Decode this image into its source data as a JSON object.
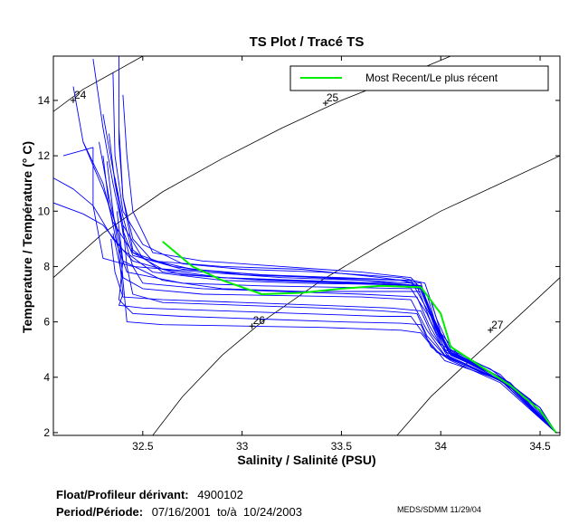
{
  "chart_data": {
    "type": "line",
    "title": "TS Plot / Tracé TS",
    "xlabel": "Salinity / Salinité (PSU)",
    "ylabel": "Temperature / Température (° C)",
    "xlim": [
      32.05,
      34.6
    ],
    "ylim": [
      1.9,
      15.6
    ],
    "xticks": [
      32.5,
      33,
      33.5,
      34,
      34.5
    ],
    "yticks": [
      2,
      4,
      6,
      8,
      10,
      12,
      14
    ],
    "xtick_labels": [
      "32.5",
      "33",
      "33.5",
      "34",
      "34.5"
    ],
    "ytick_labels": [
      "2",
      "4",
      "6",
      "8",
      "10",
      "12",
      "14"
    ],
    "legend": {
      "position": "top-right",
      "entries": [
        {
          "label": "Most Recent/Le plus récent",
          "color": "#00ee00"
        }
      ]
    },
    "density_contours": [
      {
        "label": "24",
        "marker": [
          32.15,
          14.0
        ],
        "points": [
          [
            32.05,
            13.6
          ],
          [
            32.2,
            14.4
          ],
          [
            32.35,
            15.0
          ],
          [
            32.5,
            15.6
          ]
        ]
      },
      {
        "label": "25",
        "marker": [
          33.42,
          13.9
        ],
        "points": [
          [
            32.05,
            7.6
          ],
          [
            32.3,
            9.2
          ],
          [
            32.6,
            10.7
          ],
          [
            32.9,
            11.9
          ],
          [
            33.2,
            13.0
          ],
          [
            33.5,
            14.0
          ],
          [
            33.8,
            14.85
          ],
          [
            34.05,
            15.6
          ]
        ]
      },
      {
        "label": "26",
        "marker": [
          33.05,
          5.85
        ],
        "points": [
          [
            32.55,
            1.9
          ],
          [
            32.7,
            3.3
          ],
          [
            32.9,
            4.8
          ],
          [
            33.1,
            6.0
          ],
          [
            33.4,
            7.5
          ],
          [
            33.7,
            8.8
          ],
          [
            34.0,
            10.0
          ],
          [
            34.3,
            11.0
          ],
          [
            34.6,
            12.0
          ]
        ]
      },
      {
        "label": "27",
        "marker": [
          34.25,
          5.7
        ],
        "points": [
          [
            33.78,
            1.9
          ],
          [
            33.95,
            3.3
          ],
          [
            34.1,
            4.3
          ],
          [
            34.3,
            5.6
          ],
          [
            34.45,
            6.6
          ],
          [
            34.6,
            7.6
          ]
        ]
      }
    ],
    "historical_color": "#0000ff",
    "most_recent_color": "#00ee00",
    "most_recent": [
      [
        32.6,
        8.9
      ],
      [
        32.75,
        8.0
      ],
      [
        32.9,
        7.5
      ],
      [
        33.1,
        7.0
      ],
      [
        33.3,
        7.05
      ],
      [
        33.5,
        7.2
      ],
      [
        33.7,
        7.3
      ],
      [
        33.9,
        7.25
      ],
      [
        34.0,
        6.3
      ],
      [
        34.05,
        5.1
      ],
      [
        34.2,
        4.4
      ],
      [
        34.35,
        3.7
      ],
      [
        34.5,
        2.8
      ],
      [
        34.58,
        2.0
      ]
    ],
    "profiles": [
      [
        [
          32.15,
          14.5
        ],
        [
          32.2,
          12.5
        ],
        [
          32.3,
          10.8
        ],
        [
          32.37,
          9.4
        ],
        [
          32.4,
          8.2
        ],
        [
          32.6,
          7.5
        ],
        [
          32.9,
          7.2
        ],
        [
          33.3,
          7.1
        ],
        [
          33.7,
          7.1
        ],
        [
          33.9,
          7.1
        ],
        [
          33.97,
          5.9
        ],
        [
          34.05,
          4.9
        ],
        [
          34.25,
          4.2
        ],
        [
          34.45,
          3.1
        ],
        [
          34.58,
          2.0
        ]
      ],
      [
        [
          32.25,
          15.5
        ],
        [
          32.3,
          13.0
        ],
        [
          32.35,
          11.0
        ],
        [
          32.4,
          9.3
        ],
        [
          32.45,
          8.4
        ],
        [
          32.7,
          7.9
        ],
        [
          33.1,
          7.7
        ],
        [
          33.5,
          7.6
        ],
        [
          33.85,
          7.5
        ],
        [
          33.95,
          6.2
        ],
        [
          34.02,
          5.0
        ],
        [
          34.25,
          4.3
        ],
        [
          34.45,
          3.2
        ],
        [
          34.58,
          2.0
        ]
      ],
      [
        [
          32.38,
          15.6
        ],
        [
          32.38,
          12.5
        ],
        [
          32.4,
          10.5
        ],
        [
          32.45,
          9.0
        ],
        [
          32.55,
          8.2
        ],
        [
          32.9,
          8.0
        ],
        [
          33.3,
          7.9
        ],
        [
          33.7,
          7.6
        ],
        [
          33.9,
          7.4
        ],
        [
          33.97,
          5.8
        ],
        [
          34.05,
          4.8
        ],
        [
          34.3,
          4.0
        ],
        [
          34.5,
          2.9
        ],
        [
          34.58,
          2.0
        ]
      ],
      [
        [
          32.3,
          13.5
        ],
        [
          32.35,
          11.5
        ],
        [
          32.4,
          9.8
        ],
        [
          32.45,
          8.5
        ],
        [
          32.6,
          7.9
        ],
        [
          32.9,
          7.6
        ],
        [
          33.2,
          7.5
        ],
        [
          33.6,
          7.4
        ],
        [
          33.88,
          7.3
        ],
        [
          33.95,
          6.0
        ],
        [
          34.03,
          4.9
        ],
        [
          34.25,
          4.1
        ],
        [
          34.5,
          2.9
        ],
        [
          34.58,
          2.0
        ]
      ],
      [
        [
          32.05,
          10.3
        ],
        [
          32.2,
          9.9
        ],
        [
          32.3,
          9.5
        ],
        [
          32.4,
          8.6
        ],
        [
          32.55,
          7.8
        ],
        [
          32.9,
          7.5
        ],
        [
          33.3,
          7.4
        ],
        [
          33.7,
          7.35
        ],
        [
          33.9,
          7.2
        ],
        [
          33.96,
          6.1
        ],
        [
          34.05,
          4.8
        ],
        [
          34.3,
          4.0
        ],
        [
          34.58,
          2.0
        ]
      ],
      [
        [
          32.05,
          11.2
        ],
        [
          32.15,
          10.8
        ],
        [
          32.25,
          10.2
        ],
        [
          32.35,
          9.0
        ],
        [
          32.45,
          8.2
        ],
        [
          32.7,
          7.7
        ],
        [
          33.1,
          7.5
        ],
        [
          33.5,
          7.4
        ],
        [
          33.9,
          7.3
        ],
        [
          33.97,
          6.0
        ],
        [
          34.05,
          4.9
        ],
        [
          34.35,
          3.8
        ],
        [
          34.58,
          2.0
        ]
      ],
      [
        [
          32.1,
          12.0
        ],
        [
          32.25,
          12.3
        ],
        [
          32.25,
          10.2
        ],
        [
          32.3,
          8.3
        ],
        [
          32.45,
          8.0
        ],
        [
          32.8,
          7.8
        ],
        [
          33.2,
          7.6
        ],
        [
          33.6,
          7.5
        ],
        [
          33.9,
          7.3
        ],
        [
          33.96,
          6.0
        ],
        [
          34.05,
          4.8
        ],
        [
          34.3,
          4.0
        ],
        [
          34.58,
          2.0
        ]
      ],
      [
        [
          32.28,
          12.5
        ],
        [
          32.33,
          10.5
        ],
        [
          32.38,
          9.0
        ],
        [
          32.4,
          7.6
        ],
        [
          32.5,
          7.2
        ],
        [
          32.8,
          7.0
        ],
        [
          33.2,
          6.95
        ],
        [
          33.6,
          6.9
        ],
        [
          33.85,
          6.8
        ],
        [
          33.93,
          5.7
        ],
        [
          34.02,
          4.8
        ],
        [
          34.3,
          3.9
        ],
        [
          34.58,
          2.0
        ]
      ],
      [
        [
          32.35,
          15.0
        ],
        [
          32.36,
          12.0
        ],
        [
          32.4,
          10.0
        ],
        [
          32.5,
          8.8
        ],
        [
          32.7,
          8.1
        ],
        [
          33.0,
          7.9
        ],
        [
          33.4,
          7.8
        ],
        [
          33.8,
          7.6
        ],
        [
          33.92,
          7.4
        ],
        [
          33.98,
          6.1
        ],
        [
          34.05,
          5.0
        ],
        [
          34.3,
          4.1
        ],
        [
          34.58,
          2.0
        ]
      ],
      [
        [
          32.32,
          11.8
        ],
        [
          32.35,
          10.0
        ],
        [
          32.38,
          8.5
        ],
        [
          32.4,
          7.0
        ],
        [
          32.38,
          6.6
        ],
        [
          32.5,
          6.5
        ],
        [
          32.9,
          6.4
        ],
        [
          33.3,
          6.3
        ],
        [
          33.7,
          6.2
        ],
        [
          33.85,
          6.2
        ],
        [
          33.93,
          5.4
        ],
        [
          34.02,
          4.6
        ],
        [
          34.3,
          3.9
        ],
        [
          34.58,
          2.0
        ]
      ],
      [
        [
          32.37,
          10.0
        ],
        [
          32.4,
          8.2
        ],
        [
          32.38,
          6.8
        ],
        [
          32.45,
          6.3
        ],
        [
          32.7,
          6.2
        ],
        [
          33.1,
          6.1
        ],
        [
          33.5,
          6.0
        ],
        [
          33.8,
          5.95
        ],
        [
          33.9,
          5.9
        ],
        [
          33.95,
          5.1
        ],
        [
          34.05,
          4.6
        ],
        [
          34.3,
          3.8
        ],
        [
          34.58,
          2.0
        ]
      ],
      [
        [
          32.35,
          9.2
        ],
        [
          32.4,
          7.5
        ],
        [
          32.42,
          6.0
        ],
        [
          32.6,
          5.9
        ],
        [
          33.0,
          5.85
        ],
        [
          33.4,
          5.8
        ],
        [
          33.8,
          5.7
        ],
        [
          33.9,
          5.6
        ],
        [
          33.98,
          4.9
        ],
        [
          34.1,
          4.5
        ],
        [
          34.35,
          3.7
        ],
        [
          34.58,
          2.0
        ]
      ],
      [
        [
          32.4,
          9.5
        ],
        [
          32.42,
          8.0
        ],
        [
          32.45,
          7.0
        ],
        [
          32.6,
          6.7
        ],
        [
          33.0,
          6.6
        ],
        [
          33.4,
          6.5
        ],
        [
          33.7,
          6.4
        ],
        [
          33.88,
          6.3
        ],
        [
          33.93,
          5.5
        ],
        [
          34.03,
          4.7
        ],
        [
          34.3,
          3.9
        ],
        [
          34.58,
          2.0
        ]
      ],
      [
        [
          32.2,
          12.5
        ],
        [
          32.3,
          11.0
        ],
        [
          32.35,
          9.6
        ],
        [
          32.45,
          8.5
        ],
        [
          32.65,
          8.0
        ],
        [
          33.0,
          7.7
        ],
        [
          33.4,
          7.6
        ],
        [
          33.8,
          7.5
        ],
        [
          33.9,
          7.3
        ],
        [
          33.96,
          6.0
        ],
        [
          34.04,
          4.9
        ],
        [
          34.3,
          4.0
        ],
        [
          34.58,
          2.0
        ]
      ],
      [
        [
          32.33,
          12.8
        ],
        [
          32.36,
          11.0
        ],
        [
          32.4,
          9.5
        ],
        [
          32.5,
          8.3
        ],
        [
          32.75,
          7.9
        ],
        [
          33.1,
          7.7
        ],
        [
          33.5,
          7.55
        ],
        [
          33.85,
          7.4
        ],
        [
          33.93,
          7.0
        ],
        [
          33.98,
          5.8
        ],
        [
          34.06,
          4.8
        ],
        [
          34.3,
          4.0
        ],
        [
          34.58,
          2.0
        ]
      ],
      [
        [
          32.36,
          11.2
        ],
        [
          32.4,
          9.2
        ],
        [
          32.45,
          8.0
        ],
        [
          32.5,
          7.4
        ],
        [
          32.8,
          7.2
        ],
        [
          33.2,
          7.1
        ],
        [
          33.6,
          7.0
        ],
        [
          33.88,
          6.9
        ],
        [
          33.94,
          5.9
        ],
        [
          34.03,
          4.8
        ],
        [
          34.3,
          3.9
        ],
        [
          34.58,
          2.0
        ]
      ],
      [
        [
          32.4,
          14.2
        ],
        [
          32.42,
          12.0
        ],
        [
          32.45,
          10.0
        ],
        [
          32.55,
          8.5
        ],
        [
          32.8,
          8.2
        ],
        [
          33.2,
          8.0
        ],
        [
          33.6,
          7.8
        ],
        [
          33.85,
          7.6
        ],
        [
          33.95,
          6.8
        ],
        [
          34.0,
          5.6
        ],
        [
          34.1,
          4.7
        ],
        [
          34.35,
          3.8
        ],
        [
          34.58,
          2.0
        ]
      ],
      [
        [
          32.34,
          9.0
        ],
        [
          32.36,
          7.8
        ],
        [
          32.4,
          6.9
        ],
        [
          32.6,
          6.8
        ],
        [
          33.0,
          6.7
        ],
        [
          33.4,
          6.6
        ],
        [
          33.75,
          6.5
        ],
        [
          33.9,
          6.4
        ],
        [
          33.95,
          5.6
        ],
        [
          34.05,
          4.7
        ],
        [
          34.3,
          3.9
        ],
        [
          34.58,
          2.0
        ]
      ],
      [
        [
          32.38,
          13.0
        ],
        [
          32.4,
          10.5
        ],
        [
          32.45,
          8.6
        ],
        [
          32.6,
          7.8
        ],
        [
          32.9,
          7.6
        ],
        [
          33.3,
          7.5
        ],
        [
          33.7,
          7.4
        ],
        [
          33.9,
          7.3
        ],
        [
          33.96,
          6.2
        ],
        [
          34.04,
          5.0
        ],
        [
          34.3,
          4.0
        ],
        [
          34.58,
          2.0
        ]
      ],
      [
        [
          32.3,
          12.0
        ],
        [
          32.33,
          10.2
        ],
        [
          32.37,
          8.8
        ],
        [
          32.42,
          7.8
        ],
        [
          32.7,
          7.4
        ],
        [
          33.1,
          7.3
        ],
        [
          33.5,
          7.25
        ],
        [
          33.85,
          7.2
        ],
        [
          33.93,
          6.3
        ],
        [
          34.0,
          5.2
        ],
        [
          34.2,
          4.3
        ],
        [
          34.45,
          3.2
        ],
        [
          34.58,
          2.0
        ]
      ]
    ]
  },
  "footer": {
    "float_label": "Float/Profileur dérivant:",
    "float_value": "4900102",
    "period_label": "Period/Période:",
    "period_value": "07/16/2001  to/à  10/24/2003",
    "credit": "MEDS/SDMM  11/29/04"
  }
}
